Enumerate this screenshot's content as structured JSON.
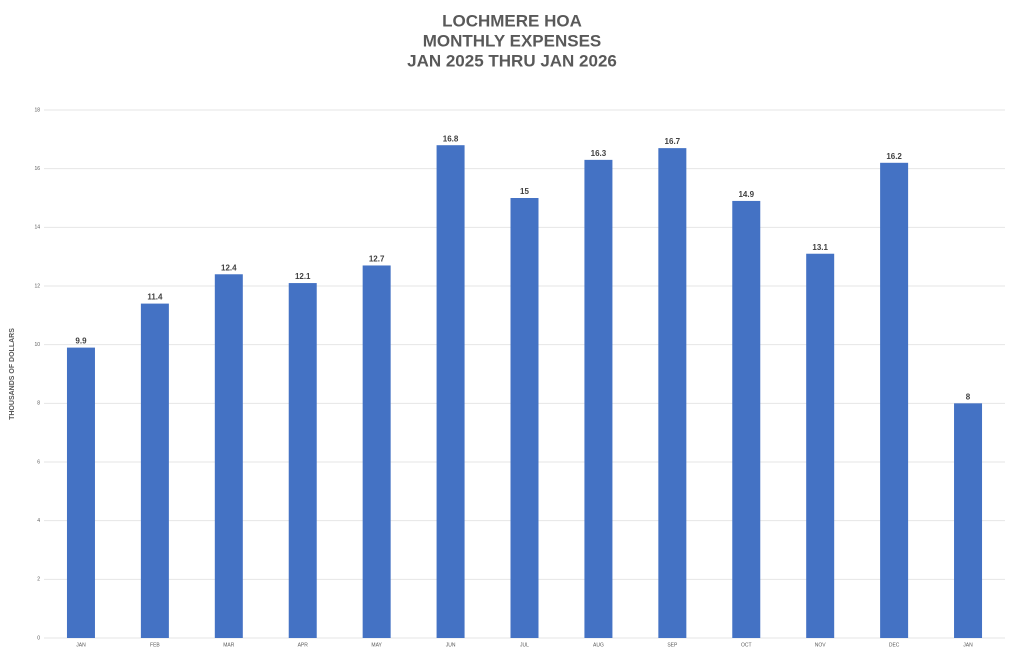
{
  "chart_data": {
    "type": "bar",
    "title": [
      "LOCHMERE HOA",
      "MONTHLY EXPENSES",
      "JAN 2025 THRU JAN 2026"
    ],
    "y_label": "THOUSANDS OF DOLLARS",
    "categories": [
      "JAN",
      "FEB",
      "MAR",
      "APR",
      "MAY",
      "JUN",
      "JUL",
      "AUG",
      "SEP",
      "OCT",
      "NOV",
      "DEC",
      "JAN"
    ],
    "values": [
      9.9,
      11.4,
      12.4,
      12.1,
      12.7,
      16.8,
      15,
      16.3,
      16.7,
      14.9,
      13.1,
      16.2,
      8
    ],
    "color": "#4472c4",
    "ylim": [
      0,
      18
    ],
    "yticks": [
      0,
      2,
      4,
      6,
      8,
      10,
      12,
      14,
      16,
      18
    ],
    "grid": true,
    "data_labels": true
  }
}
